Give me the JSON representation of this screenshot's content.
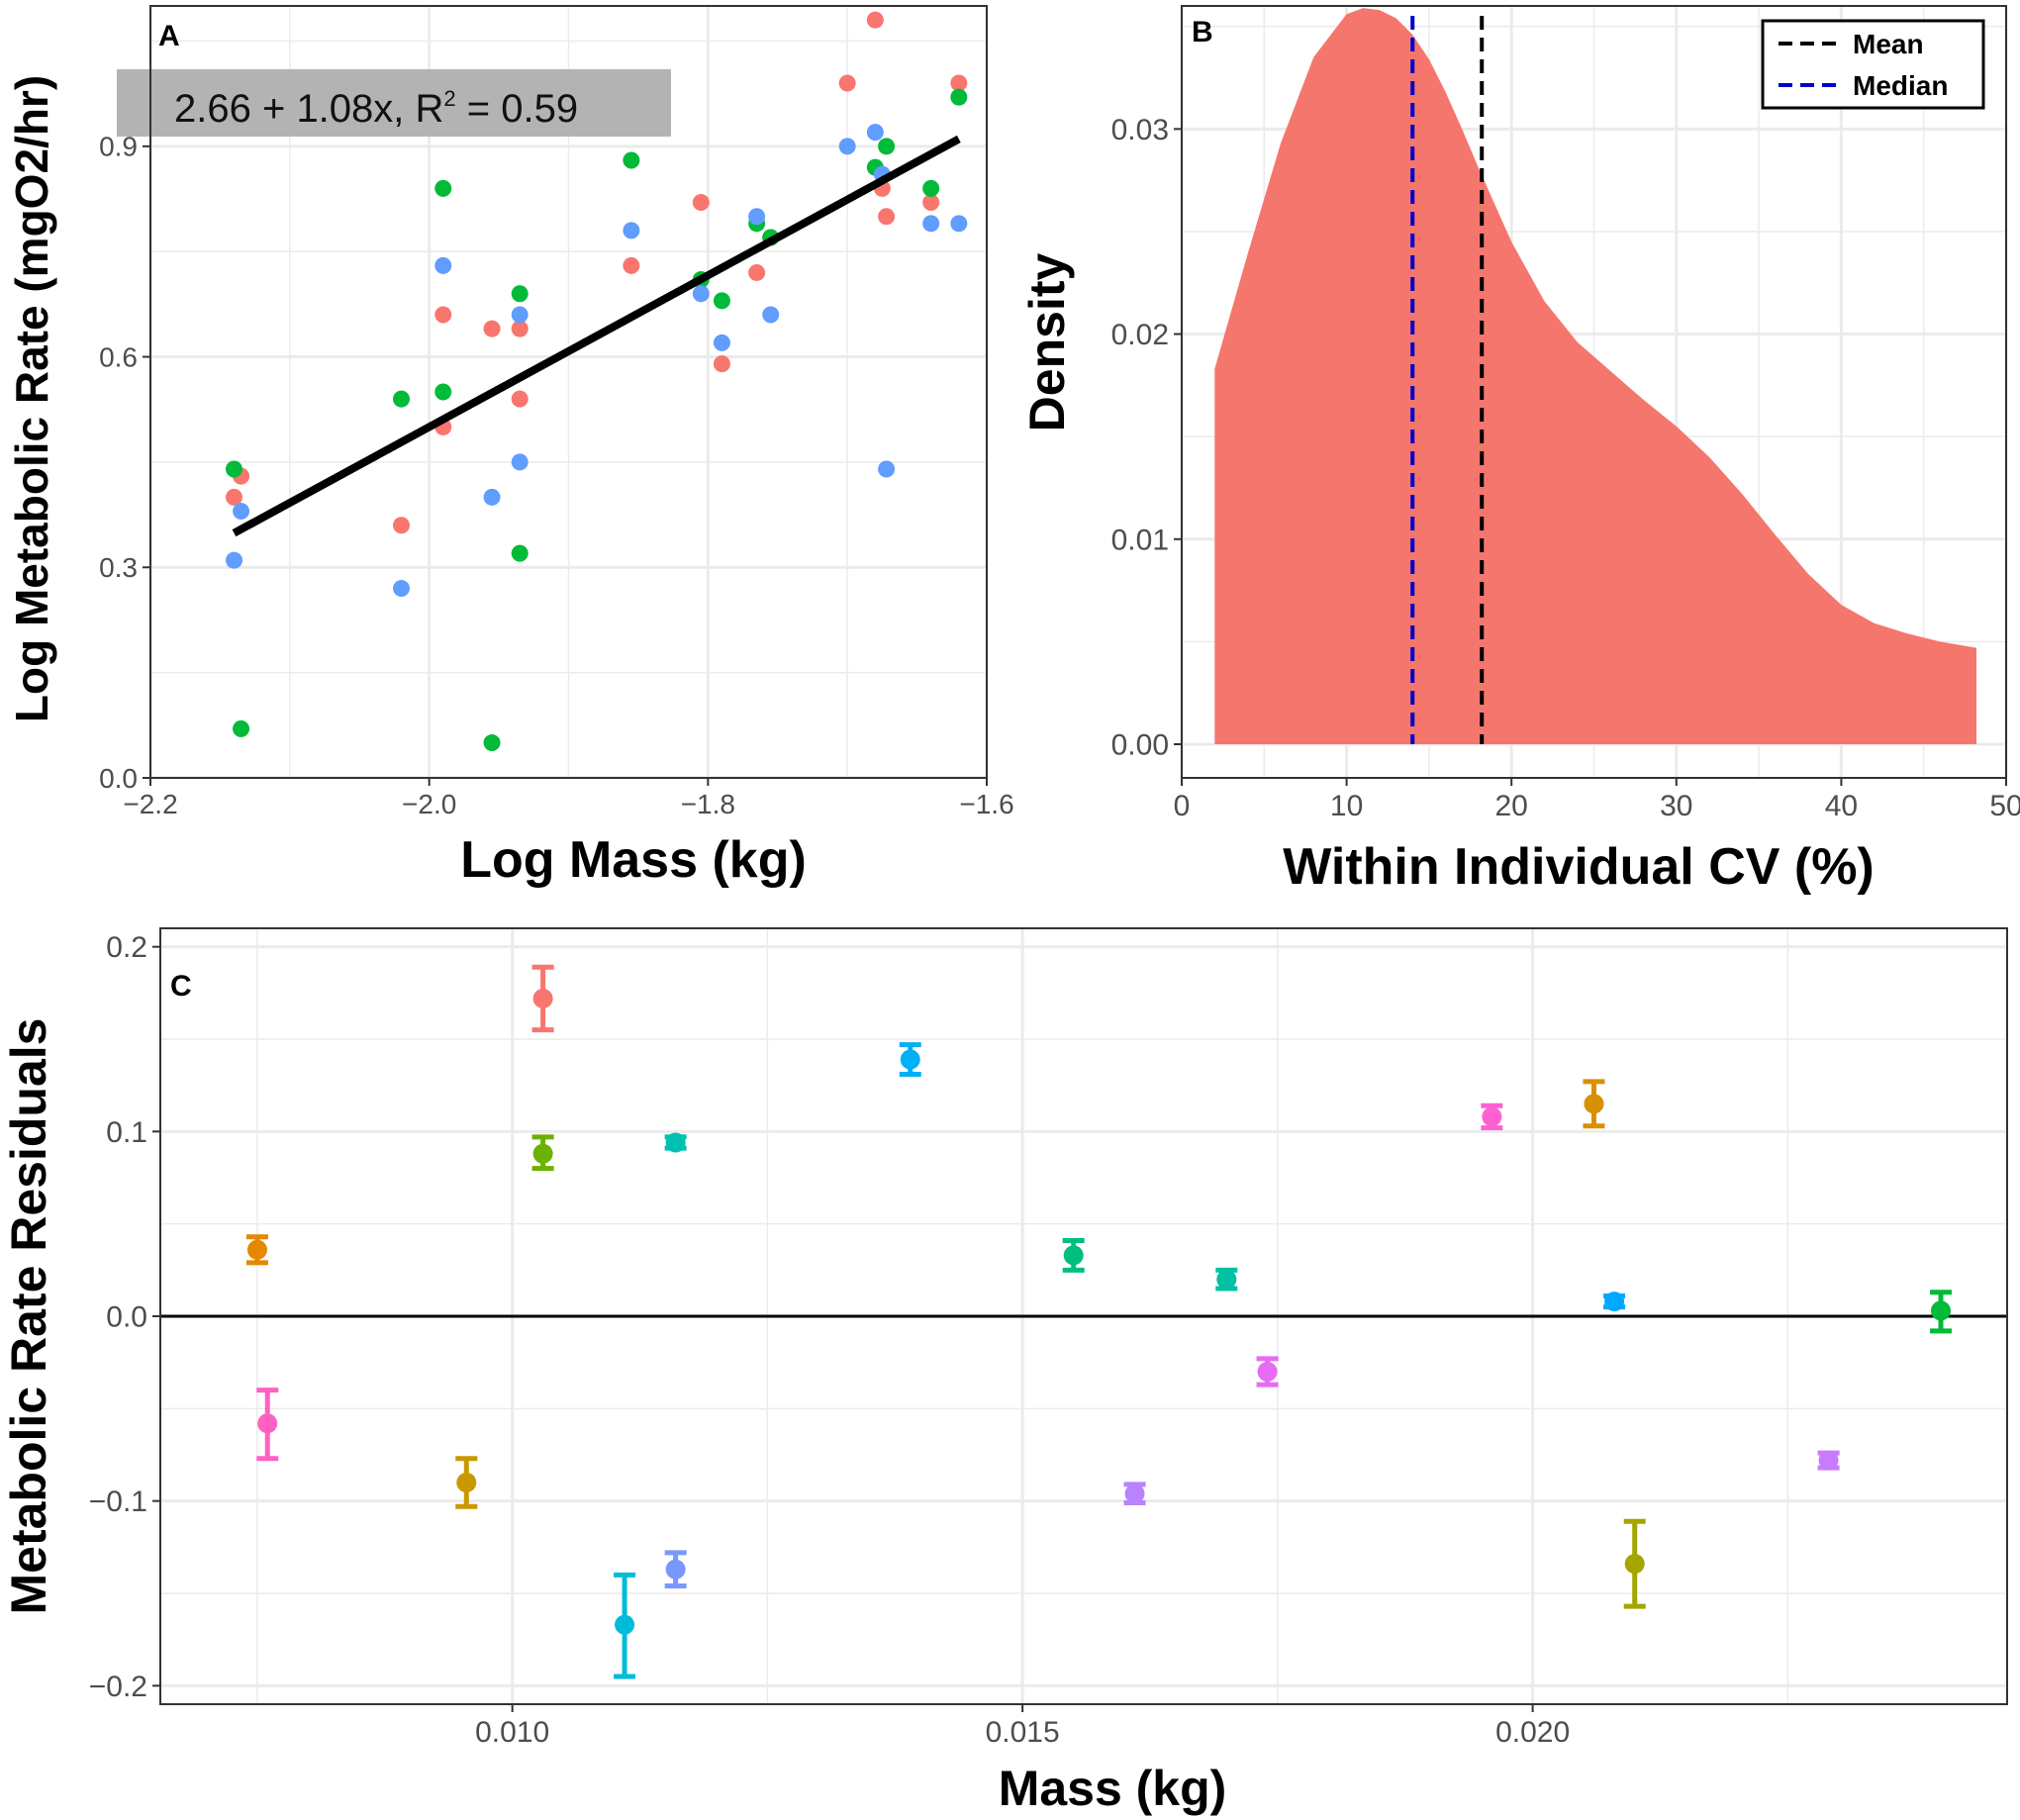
{
  "colors": {
    "red": "#F8766D",
    "green": "#00BA38",
    "blue": "#619CFF",
    "density_fill": "#F5766D",
    "mean_line": "#000000",
    "median_line": "#0000CC",
    "grid": "#EBEBEB"
  },
  "chart_data": [
    {
      "panel": "A",
      "type": "scatter",
      "panel_label": "A",
      "xlabel": "Log Mass (kg)",
      "ylabel": "Log Metabolic Rate (mgO2/hr)",
      "xlim": [
        -2.2,
        -1.6
      ],
      "ylim": [
        0.0,
        1.1
      ],
      "xticks": [
        -2.2,
        -2.0,
        -1.8,
        -1.6
      ],
      "xtick_labels": [
        "−2.2",
        "−2.0",
        "−1.8",
        "−1.6"
      ],
      "yticks": [
        0.0,
        0.3,
        0.6,
        0.9
      ],
      "ytick_labels": [
        "0.0",
        "0.3",
        "0.6",
        "0.9"
      ],
      "grid": true,
      "annotation": {
        "prefix": "2.66 + 1.08x, R",
        "sup": "2",
        "suffix": " = 0.59"
      },
      "fit_line": {
        "intercept": 2.66,
        "slope": 1.08,
        "x_range": [
          -2.14,
          -1.62
        ]
      },
      "series": [
        {
          "name": "red",
          "color": "#F8766D",
          "points": [
            [
              -2.14,
              0.4
            ],
            [
              -2.135,
              0.43
            ],
            [
              -2.02,
              0.36
            ],
            [
              -1.99,
              0.5
            ],
            [
              -1.99,
              0.66
            ],
            [
              -1.955,
              0.64
            ],
            [
              -1.935,
              0.64
            ],
            [
              -1.935,
              0.54
            ],
            [
              -1.855,
              0.73
            ],
            [
              -1.805,
              0.82
            ],
            [
              -1.79,
              0.59
            ],
            [
              -1.765,
              0.72
            ],
            [
              -1.755,
              0.77
            ],
            [
              -1.7,
              0.99
            ],
            [
              -1.68,
              1.08
            ],
            [
              -1.675,
              0.84
            ],
            [
              -1.672,
              0.8
            ],
            [
              -1.64,
              0.82
            ],
            [
              -1.62,
              0.99
            ]
          ]
        },
        {
          "name": "green",
          "color": "#00BA38",
          "points": [
            [
              -2.14,
              0.44
            ],
            [
              -2.135,
              0.07
            ],
            [
              -2.02,
              0.54
            ],
            [
              -1.99,
              0.84
            ],
            [
              -1.99,
              0.55
            ],
            [
              -1.955,
              0.05
            ],
            [
              -1.935,
              0.69
            ],
            [
              -1.935,
              0.32
            ],
            [
              -1.855,
              0.88
            ],
            [
              -1.805,
              0.71
            ],
            [
              -1.79,
              0.68
            ],
            [
              -1.765,
              0.79
            ],
            [
              -1.755,
              0.77
            ],
            [
              -1.68,
              0.87
            ],
            [
              -1.672,
              0.9
            ],
            [
              -1.64,
              0.84
            ],
            [
              -1.62,
              0.97
            ]
          ]
        },
        {
          "name": "blue",
          "color": "#619CFF",
          "points": [
            [
              -2.14,
              0.31
            ],
            [
              -2.135,
              0.38
            ],
            [
              -2.02,
              0.27
            ],
            [
              -1.99,
              0.73
            ],
            [
              -1.955,
              0.4
            ],
            [
              -1.935,
              0.66
            ],
            [
              -1.935,
              0.45
            ],
            [
              -1.855,
              0.78
            ],
            [
              -1.805,
              0.69
            ],
            [
              -1.79,
              0.62
            ],
            [
              -1.765,
              0.8
            ],
            [
              -1.755,
              0.66
            ],
            [
              -1.7,
              0.9
            ],
            [
              -1.68,
              0.92
            ],
            [
              -1.675,
              0.86
            ],
            [
              -1.672,
              0.44
            ],
            [
              -1.64,
              0.79
            ],
            [
              -1.62,
              0.79
            ]
          ]
        }
      ]
    },
    {
      "panel": "B",
      "type": "area",
      "panel_label": "B",
      "xlabel": "Within Individual CV (%)",
      "ylabel": "Density",
      "xlim": [
        0,
        50
      ],
      "ylim": [
        0.0,
        0.036
      ],
      "xticks": [
        0,
        10,
        20,
        30,
        40,
        50
      ],
      "xtick_labels": [
        "0",
        "10",
        "20",
        "30",
        "40",
        "50"
      ],
      "yticks": [
        0.0,
        0.01,
        0.02,
        0.03
      ],
      "ytick_labels": [
        "0.00",
        "0.01",
        "0.02",
        "0.03"
      ],
      "grid": true,
      "x": [
        2.0,
        4,
        6,
        8,
        10,
        11,
        12,
        13,
        14,
        15,
        16,
        17,
        18,
        20,
        22,
        24,
        26,
        28,
        30,
        32,
        34,
        36,
        38,
        40,
        42,
        44,
        46,
        48.2
      ],
      "density": [
        0.0183,
        0.0239,
        0.0293,
        0.0335,
        0.0356,
        0.0359,
        0.0358,
        0.0354,
        0.0346,
        0.0334,
        0.0318,
        0.03,
        0.0281,
        0.0245,
        0.0216,
        0.0196,
        0.0182,
        0.0168,
        0.0155,
        0.014,
        0.0122,
        0.0102,
        0.0083,
        0.0068,
        0.0059,
        0.0054,
        0.005,
        0.0047
      ],
      "mean": 18.2,
      "median": 14.0,
      "legend": {
        "position": "top-right",
        "entries": [
          {
            "label": "Mean",
            "color": "#000000"
          },
          {
            "label": "Median",
            "color": "#0000CC"
          }
        ]
      }
    },
    {
      "panel": "C",
      "type": "scatter",
      "panel_label": "C",
      "xlabel": "Mass (kg)",
      "ylabel": "Metabolic Rate Residuals",
      "xlim": [
        0.00655,
        0.02465
      ],
      "ylim": [
        -0.21,
        0.21
      ],
      "xticks": [
        0.01,
        0.015,
        0.02
      ],
      "xtick_labels": [
        "0.010",
        "0.015",
        "0.020"
      ],
      "yticks": [
        -0.2,
        -0.1,
        0.0,
        0.1,
        0.2
      ],
      "ytick_labels": [
        "−0.2",
        "−0.1",
        "0.0",
        "0.1",
        "0.2"
      ],
      "grid": true,
      "hline": 0.0,
      "points": [
        {
          "x": 0.0075,
          "y": 0.036,
          "lo": 0.029,
          "hi": 0.043,
          "color": "#E58700"
        },
        {
          "x": 0.0076,
          "y": -0.058,
          "lo": -0.077,
          "hi": -0.04,
          "color": "#FF61C3"
        },
        {
          "x": 0.00955,
          "y": -0.09,
          "lo": -0.103,
          "hi": -0.077,
          "color": "#C99800"
        },
        {
          "x": 0.0103,
          "y": 0.172,
          "lo": 0.155,
          "hi": 0.189,
          "color": "#F8766D"
        },
        {
          "x": 0.0103,
          "y": 0.088,
          "lo": 0.08,
          "hi": 0.097,
          "color": "#6BB100"
        },
        {
          "x": 0.0111,
          "y": -0.167,
          "lo": -0.195,
          "hi": -0.14,
          "color": "#00BCD8"
        },
        {
          "x": 0.0116,
          "y": 0.094,
          "lo": 0.091,
          "hi": 0.097,
          "color": "#00C0AF"
        },
        {
          "x": 0.0116,
          "y": -0.137,
          "lo": -0.146,
          "hi": -0.128,
          "color": "#7997FF"
        },
        {
          "x": 0.0139,
          "y": 0.139,
          "lo": 0.131,
          "hi": 0.147,
          "color": "#00B0F6"
        },
        {
          "x": 0.0155,
          "y": 0.033,
          "lo": 0.025,
          "hi": 0.041,
          "color": "#00BF7D"
        },
        {
          "x": 0.0161,
          "y": -0.096,
          "lo": -0.101,
          "hi": -0.091,
          "color": "#B983FF"
        },
        {
          "x": 0.017,
          "y": 0.02,
          "lo": 0.015,
          "hi": 0.025,
          "color": "#00C1A3"
        },
        {
          "x": 0.0174,
          "y": -0.03,
          "lo": -0.037,
          "hi": -0.023,
          "color": "#E76BF3"
        },
        {
          "x": 0.0196,
          "y": 0.108,
          "lo": 0.102,
          "hi": 0.114,
          "color": "#FD61D1"
        },
        {
          "x": 0.0206,
          "y": 0.115,
          "lo": 0.103,
          "hi": 0.127,
          "color": "#D89000"
        },
        {
          "x": 0.0208,
          "y": 0.008,
          "lo": 0.005,
          "hi": 0.011,
          "color": "#00A9FF"
        },
        {
          "x": 0.021,
          "y": -0.134,
          "lo": -0.157,
          "hi": -0.111,
          "color": "#A3A500"
        },
        {
          "x": 0.0229,
          "y": -0.078,
          "lo": -0.082,
          "hi": -0.074,
          "color": "#C77CFF"
        },
        {
          "x": 0.024,
          "y": 0.003,
          "lo": -0.008,
          "hi": 0.013,
          "color": "#00BA38"
        }
      ]
    }
  ]
}
